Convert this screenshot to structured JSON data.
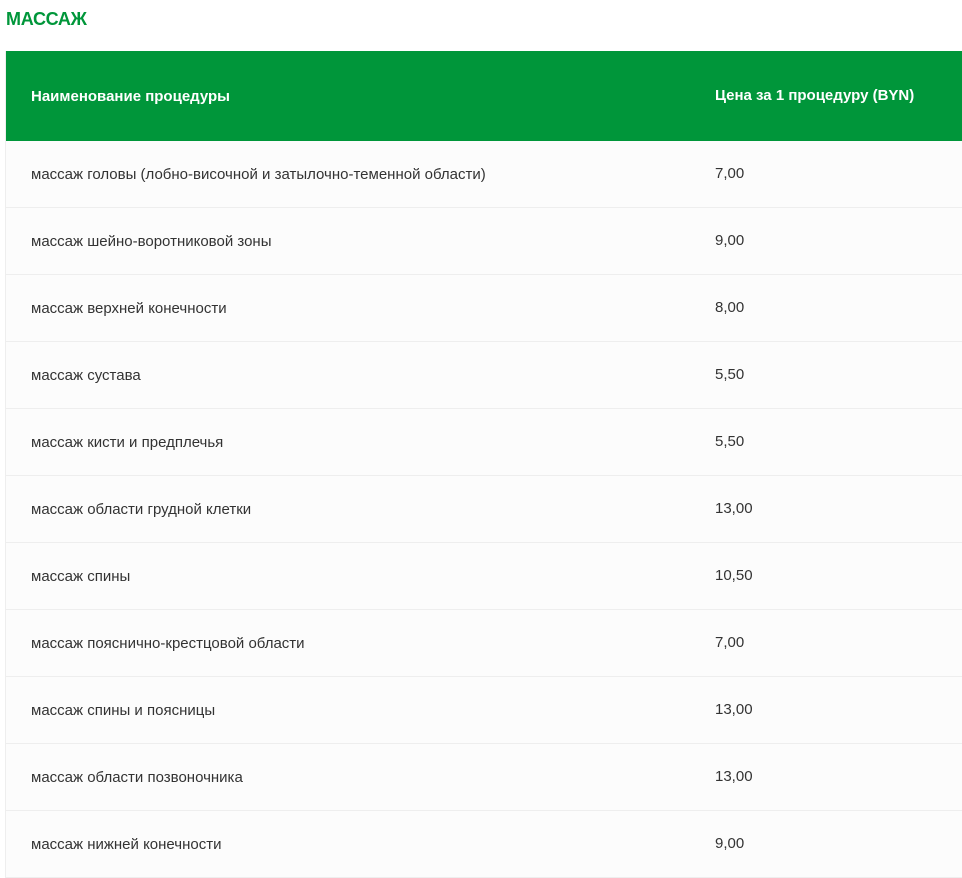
{
  "section_title": "МАССАЖ",
  "colors": {
    "accent": "#00963a"
  },
  "table": {
    "headers": [
      "Наименование процедуры",
      "Цена за 1 процедуру (BYN)"
    ],
    "rows": [
      {
        "name": "массаж головы (лобно-височной и затылочно-теменной области)",
        "price": "7,00"
      },
      {
        "name": "массаж шейно-воротниковой зоны",
        "price": "9,00"
      },
      {
        "name": "массаж верхней конечности",
        "price": "8,00"
      },
      {
        "name": "массаж сустава",
        "price": "5,50"
      },
      {
        "name": "массаж кисти и предплечья",
        "price": "5,50"
      },
      {
        "name": "массаж области грудной клетки",
        "price": "13,00"
      },
      {
        "name": "массаж спины",
        "price": "10,50"
      },
      {
        "name": "массаж пояснично-крестцовой области",
        "price": "7,00"
      },
      {
        "name": "массаж спины и поясницы",
        "price": "13,00"
      },
      {
        "name": "массаж области позвоночника",
        "price": "13,00"
      },
      {
        "name": "массаж нижней конечности",
        "price": "9,00"
      }
    ]
  }
}
